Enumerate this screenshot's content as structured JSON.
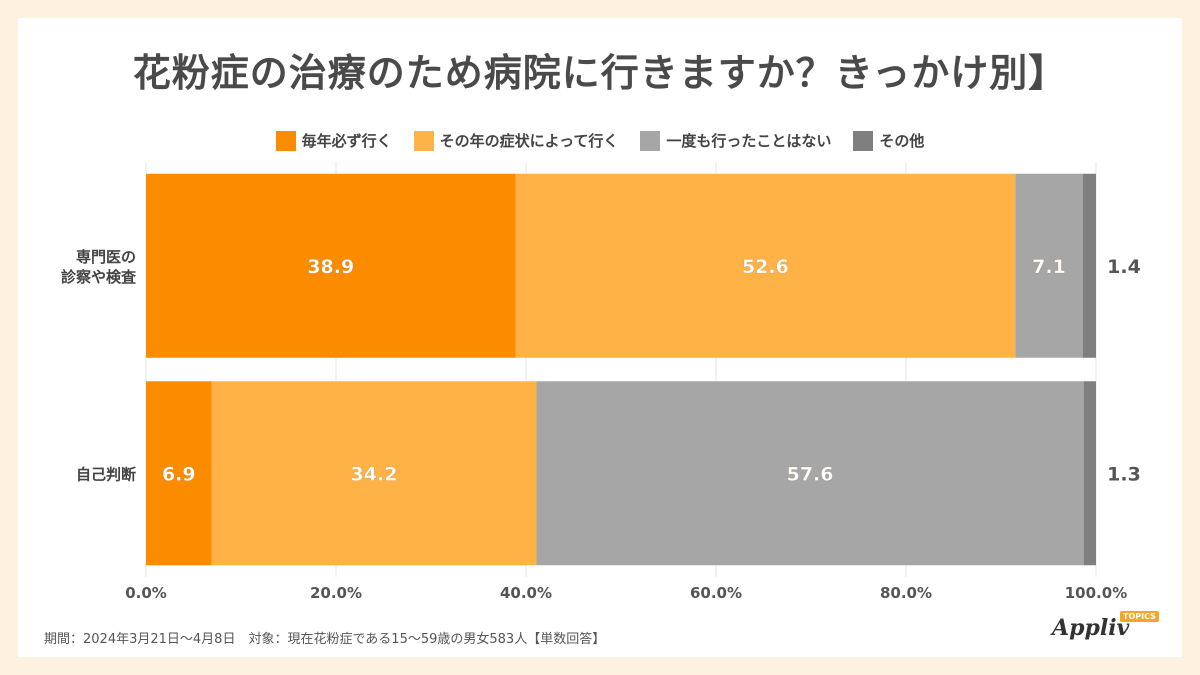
{
  "title": "花粉症の治療のため病院に行きますか？きっかけ別】",
  "footer": "期間：2024年3月21日～4月8日　対象：現在花粉症である15～59歳の男女583人【単数回答】",
  "logo": {
    "text": "Appliv",
    "badge": "TOPICS"
  },
  "colors": {
    "every_year": "#fb8c00",
    "depends": "#ffb347",
    "never": "#a6a6a6",
    "other": "#7f7f7f",
    "grid": "#e5e5e5",
    "label_dark": "#555555"
  },
  "chart_data": {
    "type": "bar",
    "orientation": "horizontal",
    "stacked": true,
    "categories": [
      "専門医の\n診察や検査",
      "自己判断"
    ],
    "series": [
      {
        "name": "毎年必ず行く",
        "values": [
          38.9,
          6.9
        ],
        "color": "#fb8c00"
      },
      {
        "name": "その年の症状によって行く",
        "values": [
          52.6,
          34.2
        ],
        "color": "#ffb347"
      },
      {
        "name": "一度も行ったことはない",
        "values": [
          7.1,
          57.6
        ],
        "color": "#a6a6a6"
      },
      {
        "name": "その他",
        "values": [
          1.4,
          1.3
        ],
        "color": "#7f7f7f"
      }
    ],
    "xlim": [
      0,
      100
    ],
    "x_ticks": [
      "0.0%",
      "20.0%",
      "40.0%",
      "60.0%",
      "80.0%",
      "100.0%"
    ],
    "grid": true,
    "legend_position": "top",
    "data_labels_inside": [
      [
        "38.9",
        "52.6",
        "7.1"
      ],
      [
        "6.9",
        "34.2",
        "57.6"
      ]
    ],
    "data_labels_outside": [
      "1.4",
      "1.3"
    ]
  }
}
